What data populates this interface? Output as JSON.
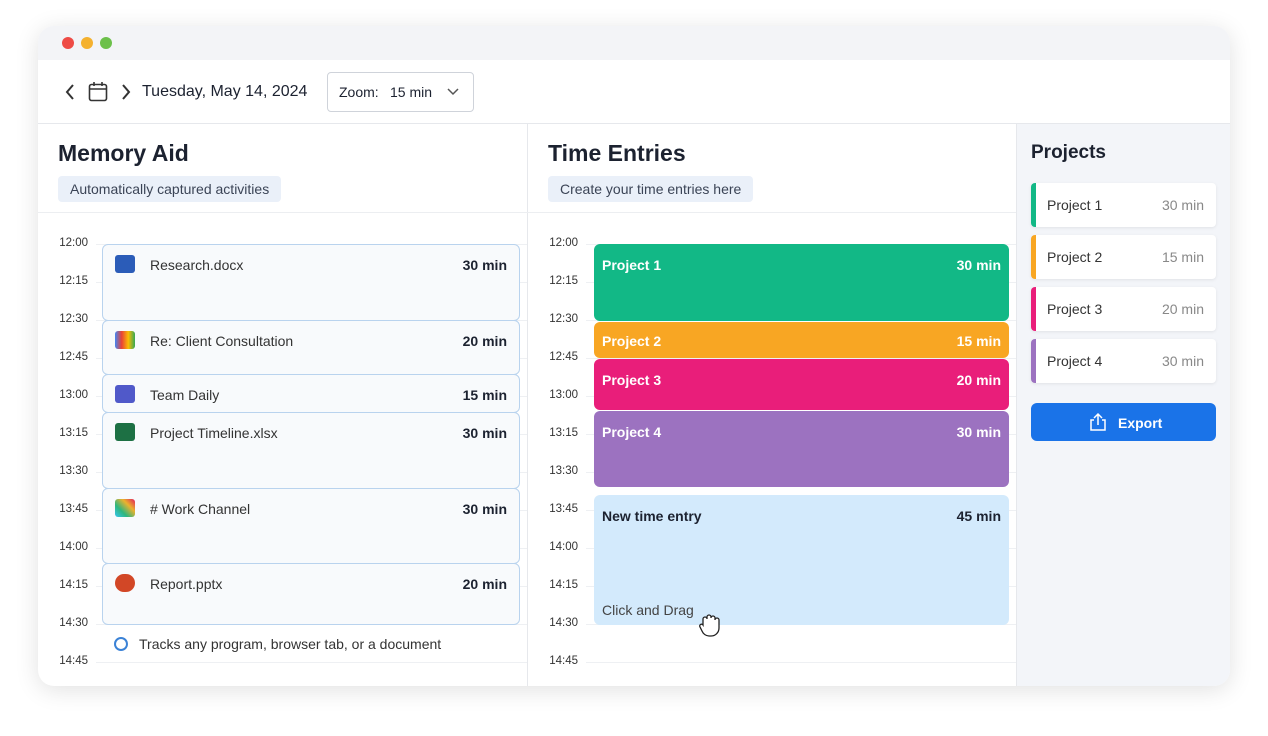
{
  "toolbar": {
    "date": "Tuesday, May 14, 2024",
    "zoom_label": "Zoom:",
    "zoom_value": "15 min"
  },
  "memory_aid": {
    "title": "Memory Aid",
    "subtitle": "Automatically captured activities",
    "times": [
      "12:00",
      "12:15",
      "12:30",
      "12:45",
      "13:00",
      "13:15",
      "13:30",
      "13:45",
      "14:00",
      "14:15",
      "14:30",
      "14:45"
    ],
    "activities": [
      {
        "name": "Research.docx",
        "duration": "30 min"
      },
      {
        "name": "Re: Client Consultation",
        "duration": "20 min"
      },
      {
        "name": "Team Daily",
        "duration": "15 min"
      },
      {
        "name": "Project Timeline.xlsx",
        "duration": "30 min"
      },
      {
        "name": "# Work Channel",
        "duration": "30 min"
      },
      {
        "name": "Report.pptx",
        "duration": "20 min"
      }
    ],
    "footer": "Tracks any program, browser tab, or a document"
  },
  "time_entries": {
    "title": "Time Entries",
    "subtitle": "Create your time entries here",
    "times": [
      "12:00",
      "12:15",
      "12:30",
      "12:45",
      "13:00",
      "13:15",
      "13:30",
      "13:45",
      "14:00",
      "14:15",
      "14:30",
      "14:45"
    ],
    "entries": [
      {
        "name": "Project 1",
        "duration": "30 min"
      },
      {
        "name": "Project 2",
        "duration": "15 min"
      },
      {
        "name": "Project 3",
        "duration": "20 min"
      },
      {
        "name": "Project 4",
        "duration": "30 min"
      }
    ],
    "new_entry": {
      "name": "New time entry",
      "duration": "45 min",
      "hint": "Click and Drag"
    }
  },
  "projects": {
    "title": "Projects",
    "items": [
      {
        "name": "Project 1",
        "duration": "30 min"
      },
      {
        "name": "Project 2",
        "duration": "15 min"
      },
      {
        "name": "Project 3",
        "duration": "20 min"
      },
      {
        "name": "Project 4",
        "duration": "30 min"
      }
    ],
    "export": "Export"
  }
}
